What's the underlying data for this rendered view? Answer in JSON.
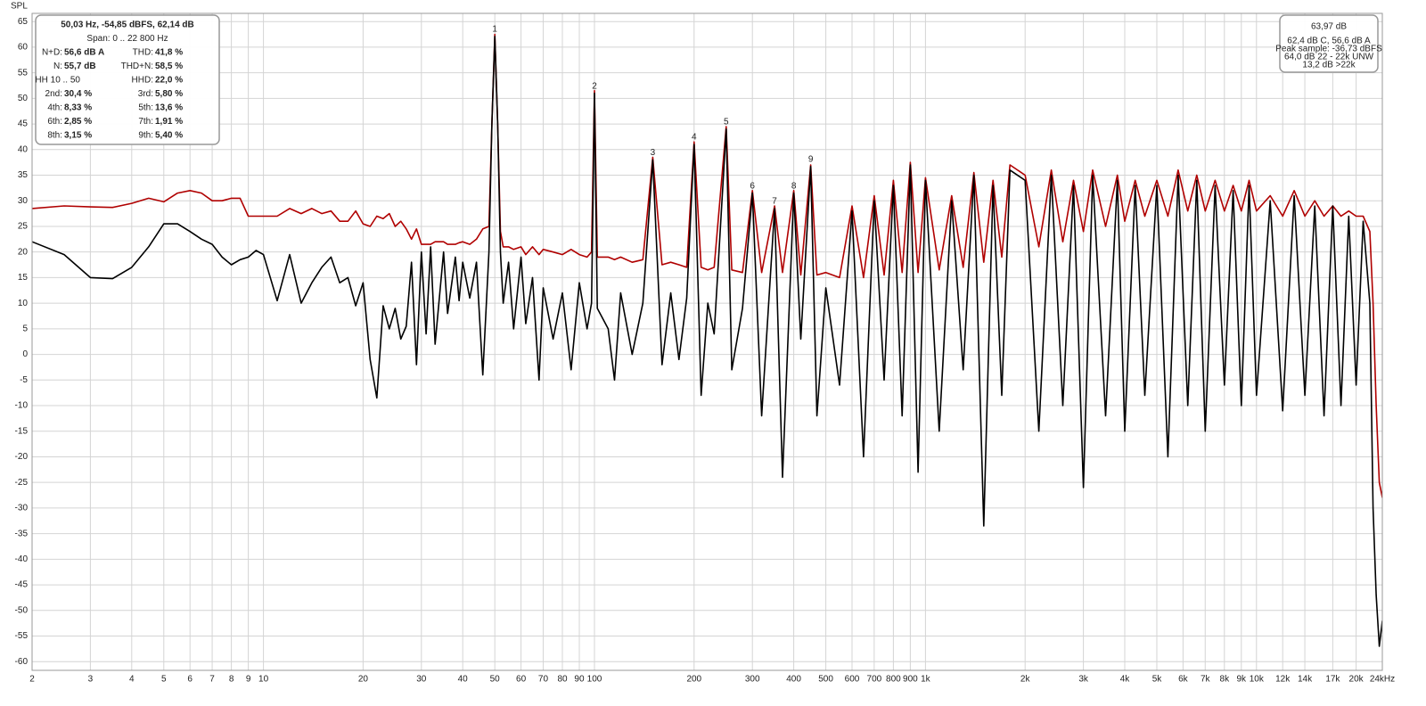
{
  "chart_data": {
    "type": "line",
    "y_label": "SPL",
    "log_x": true,
    "grid": true,
    "xlim": [
      2,
      24000
    ],
    "ylim": [
      -61.7,
      66.6
    ],
    "yticks": [
      -60,
      -55,
      -50,
      -45,
      -40,
      -35,
      -30,
      -25,
      -20,
      -15,
      -10,
      -5,
      0,
      5,
      10,
      15,
      20,
      25,
      30,
      35,
      40,
      45,
      50,
      55,
      60,
      65
    ],
    "xticks": [
      2,
      3,
      4,
      5,
      6,
      7,
      8,
      9,
      10,
      20,
      30,
      40,
      50,
      60,
      70,
      80,
      90,
      100,
      200,
      300,
      400,
      500,
      600,
      700,
      800,
      900,
      {
        "value": 1000,
        "label": "1k"
      },
      {
        "value": 2000,
        "label": "2k"
      },
      {
        "value": 3000,
        "label": "3k"
      },
      {
        "value": 4000,
        "label": "4k"
      },
      {
        "value": 5000,
        "label": "5k"
      },
      {
        "value": 6000,
        "label": "6k"
      },
      {
        "value": 7000,
        "label": "7k"
      },
      {
        "value": 8000,
        "label": "8k"
      },
      {
        "value": 9000,
        "label": "9k"
      },
      {
        "value": 10000,
        "label": "10k"
      },
      {
        "value": 12000,
        "label": "12k"
      },
      {
        "value": 14000,
        "label": "14k"
      },
      {
        "value": 17000,
        "label": "17k"
      },
      {
        "value": 20000,
        "label": "20k"
      },
      {
        "value": 24000,
        "label": "24kHz"
      }
    ],
    "x": [
      2,
      2.5,
      3,
      3.5,
      4,
      4.5,
      5,
      5.5,
      6,
      6.5,
      7,
      7.5,
      8,
      8.5,
      9,
      9.5,
      10,
      11,
      12,
      13,
      14,
      15,
      16,
      17,
      18,
      19,
      20,
      21,
      22,
      23,
      24,
      25,
      26,
      27,
      28,
      29,
      30,
      31,
      32,
      33,
      35,
      36,
      38,
      39,
      40,
      42,
      44,
      46,
      48,
      49,
      50,
      51,
      52,
      53,
      55,
      57,
      60,
      62,
      65,
      68,
      70,
      75,
      80,
      85,
      90,
      95,
      98,
      100,
      102,
      110,
      115,
      120,
      130,
      140,
      150,
      160,
      170,
      180,
      190,
      200,
      210,
      220,
      230,
      250,
      260,
      280,
      300,
      320,
      350,
      370,
      400,
      420,
      450,
      470,
      500,
      550,
      600,
      650,
      700,
      750,
      800,
      850,
      900,
      950,
      1000,
      1100,
      1200,
      1300,
      1400,
      1500,
      1600,
      1700,
      1800,
      2000,
      2200,
      2400,
      2600,
      2800,
      3000,
      3200,
      3500,
      3800,
      4000,
      4300,
      4600,
      5000,
      5400,
      5800,
      6200,
      6600,
      7000,
      7500,
      8000,
      8500,
      9000,
      9500,
      10000,
      11000,
      12000,
      13000,
      14000,
      15000,
      16000,
      17000,
      18000,
      19000,
      20000,
      21000,
      22000,
      22500,
      23000,
      23500,
      24000
    ],
    "series": [
      {
        "color": "#b00000",
        "values": [
          28.5,
          29,
          28.8,
          28.7,
          29.5,
          30.5,
          29.8,
          31.5,
          32,
          31.5,
          30,
          30,
          30.5,
          30.5,
          27,
          27,
          27,
          27,
          28.5,
          27.5,
          28.5,
          27.5,
          28,
          26,
          26,
          28,
          25.5,
          25,
          27,
          26.5,
          27.5,
          25,
          26,
          24.5,
          22.5,
          24.5,
          21.5,
          21.5,
          21.5,
          22,
          22,
          21.5,
          21.5,
          21.8,
          22,
          21.5,
          22.5,
          24.5,
          25,
          45,
          62.5,
          45,
          24,
          21,
          21,
          20.5,
          21,
          19.5,
          21,
          19.5,
          20.5,
          20,
          19.5,
          20.5,
          19.5,
          19,
          20,
          51.5,
          19,
          19,
          18.5,
          19,
          18,
          18.5,
          38.5,
          17.5,
          18,
          17.5,
          17,
          41.5,
          17,
          16.5,
          17,
          44.5,
          16.5,
          16,
          32,
          16,
          29,
          16,
          32,
          15.5,
          37,
          15.5,
          16,
          15,
          29,
          15,
          31,
          15.5,
          34,
          16,
          37.5,
          16,
          34.5,
          16.5,
          31,
          17,
          35.5,
          18,
          34,
          19,
          37,
          35,
          21,
          36,
          22,
          34,
          24,
          36,
          25,
          35,
          26,
          34,
          27,
          34,
          27,
          36,
          28,
          35,
          28,
          34,
          28,
          33,
          28,
          34,
          28,
          31,
          27,
          32,
          27,
          30,
          27,
          29,
          27,
          28,
          27,
          27,
          24,
          10,
          -10,
          -25,
          -28
        ]
      },
      {
        "color": "#000000",
        "values": [
          22,
          19.5,
          15,
          14.8,
          17,
          21,
          25.5,
          25.5,
          24,
          22.5,
          21.5,
          19,
          17.5,
          18.5,
          19,
          20.3,
          19.5,
          10.5,
          19.5,
          10,
          14,
          17,
          19,
          14,
          15,
          9.5,
          14,
          -1,
          -8.5,
          9.5,
          5,
          9,
          3,
          5.5,
          18,
          -2,
          20,
          4,
          21,
          2,
          20,
          8,
          19,
          10.5,
          18,
          11,
          18,
          -4,
          20,
          45,
          62.1,
          45,
          20,
          10,
          18,
          5,
          19,
          6,
          15,
          -5,
          13,
          3,
          12,
          -3,
          14,
          5,
          10,
          51,
          9,
          5,
          -5,
          12,
          0,
          10,
          38,
          -2,
          12,
          -1,
          11,
          41,
          -8,
          10,
          4,
          44,
          -3,
          9,
          31.5,
          -12,
          28.5,
          -24,
          31.5,
          3,
          36.7,
          -12,
          13,
          -6,
          28,
          -20,
          30,
          -5,
          33,
          -12,
          37,
          -23,
          34,
          -15,
          30,
          -3,
          35,
          -33.5,
          33,
          -8,
          36,
          34,
          -15,
          35,
          -10,
          33,
          -26,
          35,
          -12,
          34,
          -15,
          33,
          -8,
          33,
          -20,
          35,
          -10,
          34,
          -15,
          33,
          -6,
          32,
          -10,
          33,
          -8,
          30,
          -11,
          31,
          -8,
          29,
          -12,
          29,
          -10,
          27,
          -6,
          26,
          10,
          -30,
          -47,
          -57,
          -52
        ]
      }
    ],
    "annotations": [
      {
        "text": "1",
        "x": 50,
        "y": 62.1
      },
      {
        "text": "2",
        "x": 100,
        "y": 51
      },
      {
        "text": "3",
        "x": 150,
        "y": 38
      },
      {
        "text": "4",
        "x": 200,
        "y": 41
      },
      {
        "text": "5",
        "x": 250,
        "y": 44
      },
      {
        "text": "6",
        "x": 300,
        "y": 31.5
      },
      {
        "text": "7",
        "x": 350,
        "y": 28.5
      },
      {
        "text": "8",
        "x": 400,
        "y": 31.5
      },
      {
        "text": "9",
        "x": 450,
        "y": 36.7
      }
    ],
    "info_panel": {
      "header": [
        "50,03 Hz, -54,85 dBFS, 62,14 dB",
        "Span: 0 .. 22 800 Hz"
      ],
      "rows": [
        [
          {
            "label": "N+D:",
            "value": "56,6 dB A"
          },
          {
            "label": "THD:",
            "value": "41,8 %"
          }
        ],
        [
          {
            "label": "N:",
            "value": "55,7 dB"
          },
          {
            "label": "THD+N:",
            "value": "58,5 %"
          }
        ],
        [
          {
            "label": "HH 10 .. 50"
          },
          {
            "label": "HHD:",
            "value": "22,0 %"
          }
        ],
        [
          {
            "label": "2nd:",
            "value": "30,4 %"
          },
          {
            "label": "3rd:",
            "value": "5,80 %"
          }
        ],
        [
          {
            "label": "4th:",
            "value": "8,33 %"
          },
          {
            "label": "5th:",
            "value": "13,6 %"
          }
        ],
        [
          {
            "label": "6th:",
            "value": "2,85 %"
          },
          {
            "label": "7th:",
            "value": "1,91 %"
          }
        ],
        [
          {
            "label": "8th:",
            "value": "3,15 %"
          },
          {
            "label": "9th:",
            "value": "5,40 %"
          }
        ]
      ]
    },
    "level_panel": {
      "value": "63,97 dB",
      "lines": [
        "62,4 dB C, 56,6 dB A",
        "Peak sample: -36,73 dBFS",
        "64,0 dB 22 - 22k UNW",
        "13,2 dB >22k"
      ]
    }
  }
}
